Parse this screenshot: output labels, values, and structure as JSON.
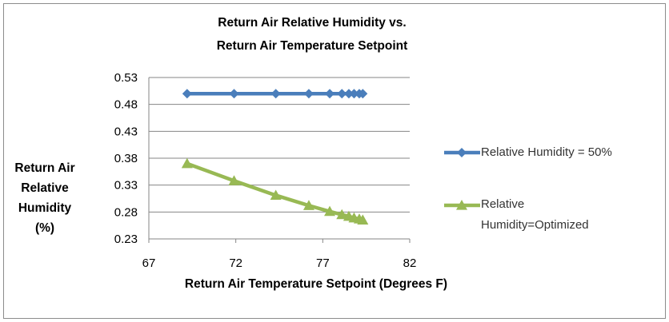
{
  "chart_data": {
    "type": "line",
    "title": [
      "Return Air Relative Humidity vs.",
      "Return Air Temperature Setpoint"
    ],
    "xlabel": "Return Air Temperature Setpoint (Degrees F)",
    "ylabel": [
      "Return Air",
      "Relative",
      "Humidity",
      "(%)"
    ],
    "xlim": [
      67,
      82
    ],
    "ylim": [
      0.23,
      0.53
    ],
    "xticks": [
      "67",
      "72",
      "77",
      "82"
    ],
    "yticks": [
      "0.53",
      "0.48",
      "0.43",
      "0.38",
      "0.33",
      "0.28",
      "0.23"
    ],
    "grid": true,
    "legend_position": "right",
    "series": [
      {
        "name": "Relative Humidity = 50%",
        "color": "#4a7ebb",
        "marker": "diamond",
        "x": [
          69.2,
          71.9,
          74.3,
          76.2,
          77.4,
          78.1,
          78.5,
          78.8,
          79.1,
          79.3
        ],
        "y": [
          0.5,
          0.5,
          0.5,
          0.5,
          0.5,
          0.5,
          0.5,
          0.5,
          0.5,
          0.5
        ]
      },
      {
        "name": "Relative Humidity=Optimized",
        "color": "#98b954",
        "marker": "triangle",
        "x": [
          69.2,
          71.9,
          74.3,
          76.2,
          77.4,
          78.1,
          78.5,
          78.8,
          79.1,
          79.3
        ],
        "y": [
          0.37,
          0.338,
          0.311,
          0.292,
          0.281,
          0.275,
          0.272,
          0.269,
          0.267,
          0.265
        ]
      }
    ]
  }
}
